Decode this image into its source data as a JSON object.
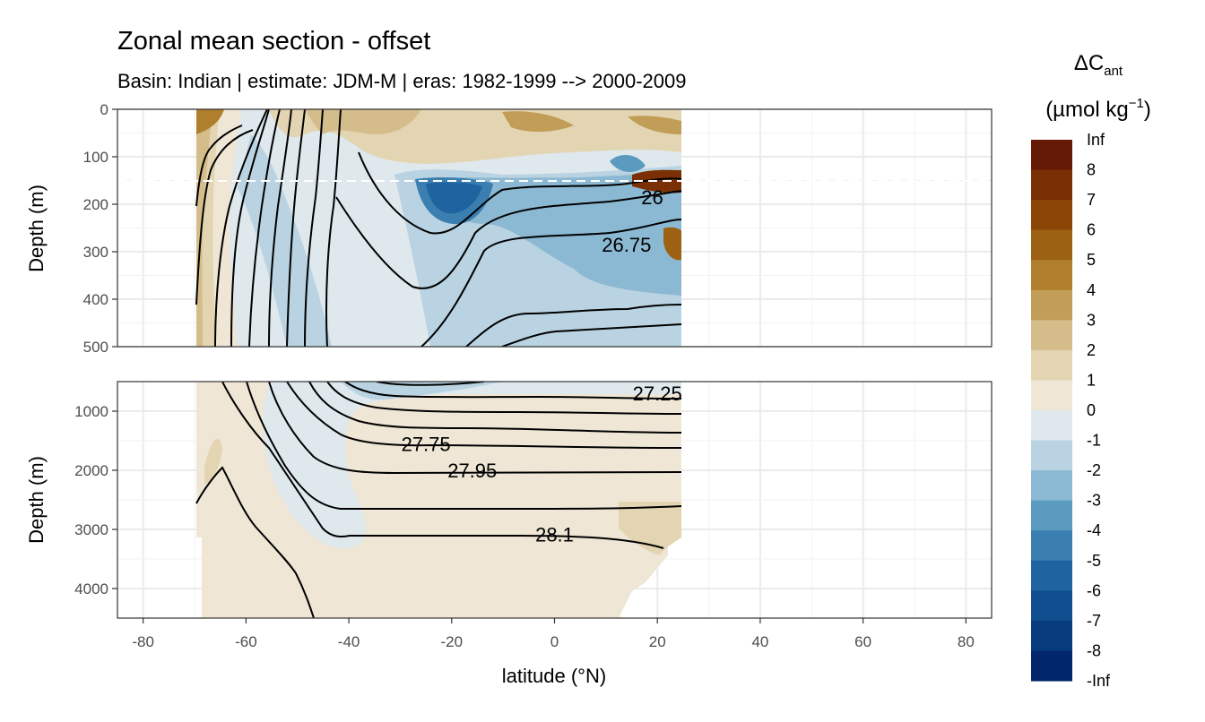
{
  "chart_data": {
    "type": "heatmap",
    "title": "Zonal mean section - offset",
    "subtitle": "Basin: Indian | estimate: JDM-M | eras: 1982-1999 --> 2000-2009",
    "xlabel": "latitude (°N)",
    "ylabel": "Depth (m)",
    "xlim": [
      -85,
      85
    ],
    "x_ticks": [
      -80,
      -60,
      -40,
      -20,
      0,
      20,
      40,
      60,
      80
    ],
    "data_lat_range": [
      -70,
      24.5
    ],
    "reference_depth_line": 150,
    "panels": [
      {
        "name": "upper",
        "ylim": [
          0,
          500
        ],
        "y_ticks": [
          0,
          100,
          200,
          300,
          400,
          500
        ]
      },
      {
        "name": "lower",
        "ylim": [
          500,
          4500
        ],
        "y_ticks": [
          1000,
          2000,
          3000,
          4000
        ]
      }
    ],
    "legend": {
      "title_main": "ΔC",
      "title_sub": "ant",
      "unit_main": "(µmol kg",
      "unit_sup": "−1",
      "unit_close": ")",
      "labels": [
        "Inf",
        "8",
        "7",
        "6",
        "5",
        "4",
        "3",
        "2",
        "1",
        "0",
        "-1",
        "-2",
        "-3",
        "-4",
        "-5",
        "-6",
        "-7",
        "-8",
        "-Inf"
      ],
      "colors": [
        "#651A06",
        "#7A3004",
        "#8B4506",
        "#9D6113",
        "#AF7F2E",
        "#C19D57",
        "#D4BC8B",
        "#E4D5B2",
        "#EFE6D6",
        "#DEE8ED",
        "#B9D3E2",
        "#8BB8D2",
        "#5C9BC0",
        "#3B7FB0",
        "#1F63A0",
        "#104D8F",
        "#083A7E",
        "#02266C",
        "#000F55"
      ]
    },
    "contours": [
      {
        "label": "26",
        "lat": 19,
        "depth": 185
      },
      {
        "label": "26.75",
        "lat": 14,
        "depth": 285
      },
      {
        "label": "27.25",
        "lat": 20,
        "depth": 700
      },
      {
        "label": "27.75",
        "lat": -25,
        "depth": 1550
      },
      {
        "label": "27.95",
        "lat": -16,
        "depth": 2000
      },
      {
        "label": "28.1",
        "lat": 0,
        "depth": 3080
      }
    ],
    "grid": true,
    "legend_position": "right"
  }
}
